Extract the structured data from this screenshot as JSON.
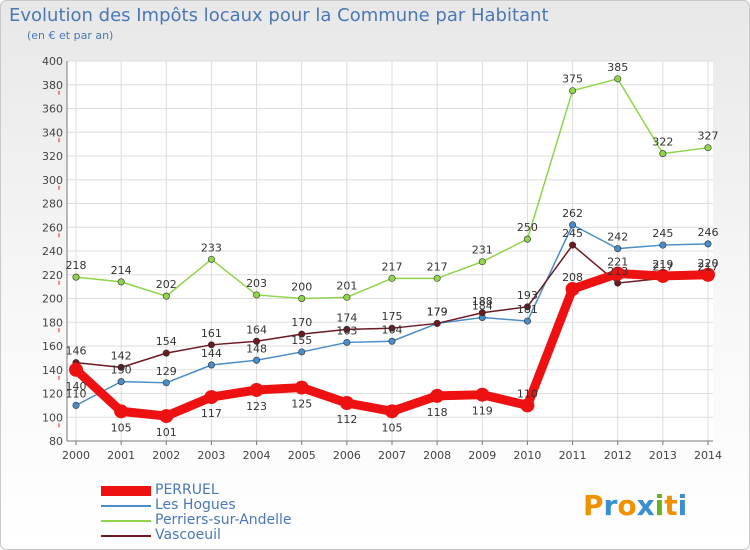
{
  "header": {
    "title": "Evolution des Impôts locaux pour la Commune par Habitant",
    "subtitle": "(en € et par an)"
  },
  "logo": {
    "text": "Proxiti",
    "letters": [
      "P",
      "r",
      "o",
      "x",
      "i",
      "t",
      "i"
    ],
    "colors": [
      "#f29100",
      "#3a8fd0",
      "#f29100",
      "#3a8fd0",
      "#6ab023",
      "#f29100",
      "#3a8fd0"
    ]
  },
  "chart_data": {
    "type": "line",
    "x": [
      "2000",
      "2001",
      "2002",
      "2003",
      "2004",
      "2005",
      "2006",
      "2007",
      "2008",
      "2009",
      "2010",
      "2011",
      "2012",
      "2013",
      "2014"
    ],
    "ylim": [
      80,
      400
    ],
    "yticks": [
      80,
      100,
      120,
      140,
      160,
      180,
      200,
      220,
      240,
      260,
      280,
      300,
      320,
      340,
      360,
      380,
      400
    ],
    "grid": true,
    "legend_position": "bottom-left",
    "series": [
      {
        "name": "Perriers-sur-Andelle",
        "color": "#8fd44a",
        "values": [
          218,
          214,
          202,
          233,
          203,
          200,
          201,
          217,
          217,
          231,
          250,
          375,
          385,
          322,
          327
        ]
      },
      {
        "name": "Les Hogues",
        "color": "#4a8cc7",
        "values": [
          110,
          130,
          129,
          144,
          148,
          155,
          163,
          164,
          179,
          184,
          181,
          262,
          242,
          245,
          246
        ]
      },
      {
        "name": "Vascoeuil",
        "color": "#6b1a22",
        "values": [
          146,
          142,
          154,
          161,
          164,
          170,
          174,
          175,
          179,
          188,
          193,
          245,
          213,
          217,
          217
        ]
      },
      {
        "name": "PERRUEL",
        "color": "#ee1111",
        "values": [
          140,
          105,
          101,
          117,
          123,
          125,
          112,
          105,
          118,
          119,
          110,
          208,
          221,
          219,
          220
        ]
      }
    ],
    "data_labels": [
      {
        "series": "Perriers-sur-Andelle",
        "labels": [
          "218",
          "214",
          "202",
          "233",
          "203",
          "200",
          "201",
          "217",
          "217",
          "231",
          "250",
          "375",
          "385",
          "322",
          "327"
        ]
      },
      {
        "series": "Les Hogues",
        "labels": [
          "110",
          "130",
          "129",
          "144",
          "148",
          "155",
          "163",
          "164",
          "179",
          "184",
          "181",
          "262",
          "242",
          "245",
          "246"
        ]
      },
      {
        "series": "Vascoeuil",
        "labels": [
          "146",
          "142",
          "154",
          "161",
          "164",
          "170",
          "174",
          "175",
          "179",
          "188",
          "193",
          "245",
          "213",
          "217",
          "217"
        ]
      },
      {
        "series": "PERRUEL",
        "labels": [
          "140",
          "105",
          "101",
          "117",
          "123",
          "125",
          "112",
          "105",
          "118",
          "119",
          "110",
          "208",
          "221",
          "219",
          "220"
        ]
      }
    ]
  },
  "legend": {
    "items": [
      {
        "label": "PERRUEL",
        "color": "#ee1111",
        "thickness": 10
      },
      {
        "label": "Les Hogues",
        "color": "#4a8cc7",
        "thickness": 2
      },
      {
        "label": "Perriers-sur-Andelle",
        "color": "#8fd44a",
        "thickness": 2
      },
      {
        "label": "Vascoeuil",
        "color": "#6b1a22",
        "thickness": 2
      }
    ]
  }
}
